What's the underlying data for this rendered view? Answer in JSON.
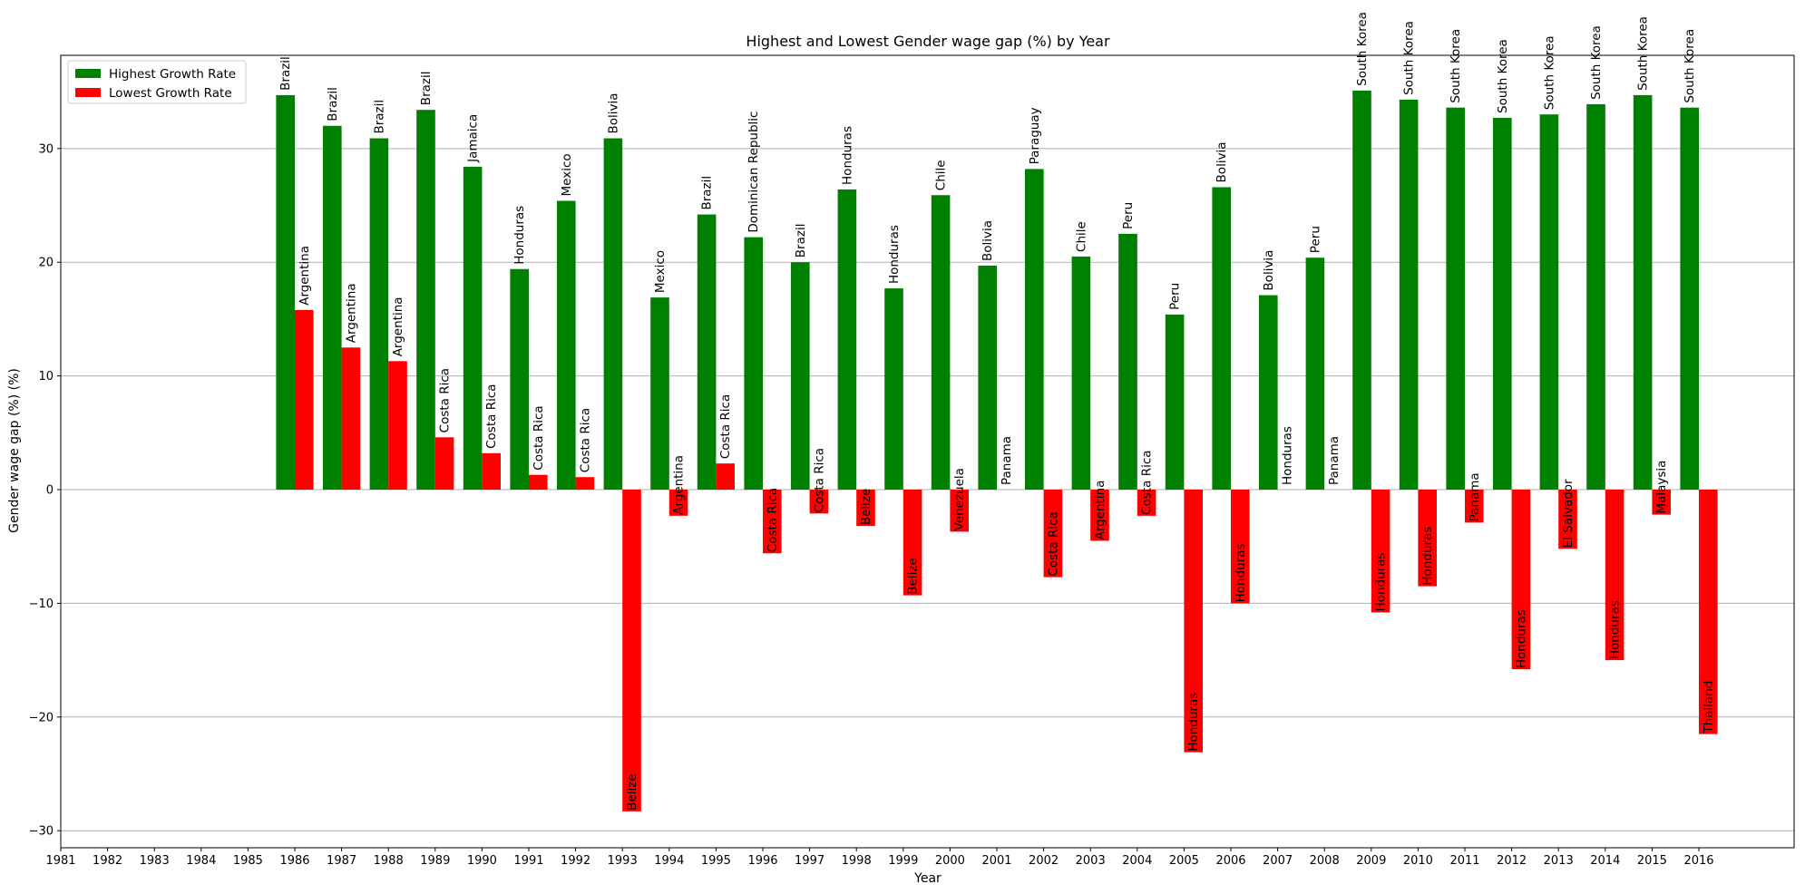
{
  "chart_data": {
    "type": "bar",
    "title": "Highest and Lowest Gender wage gap (%) by Year",
    "xlabel": "Year",
    "ylabel": "Gender wage gap (%) (%)",
    "ylim": [
      -31.5,
      38.2
    ],
    "yticks": [
      -30,
      -20,
      -10,
      0,
      10,
      20,
      30
    ],
    "grid": "y",
    "legend_position": "top-left",
    "categories": [
      "1981",
      "1982",
      "1983",
      "1984",
      "1985",
      "1986",
      "1987",
      "1988",
      "1989",
      "1990",
      "1991",
      "1992",
      "1993",
      "1994",
      "1995",
      "1996",
      "1997",
      "1998",
      "1999",
      "2000",
      "2001",
      "2002",
      "2003",
      "2004",
      "2005",
      "2006",
      "2007",
      "2008",
      "2009",
      "2010",
      "2011",
      "2012",
      "2013",
      "2014",
      "2015",
      "2016"
    ],
    "series": [
      {
        "name": "Highest Growth Rate",
        "color": "#008000",
        "values": [
          null,
          null,
          null,
          null,
          null,
          34.7,
          32.0,
          30.9,
          33.4,
          28.4,
          19.4,
          25.4,
          30.9,
          16.9,
          24.2,
          22.2,
          20.0,
          26.4,
          17.7,
          25.9,
          19.7,
          28.2,
          20.5,
          22.5,
          15.4,
          26.6,
          17.1,
          20.4,
          35.1,
          34.3,
          33.6,
          32.7,
          33.0,
          33.9,
          34.7,
          33.6
        ],
        "labels": [
          null,
          null,
          null,
          null,
          null,
          "Brazil",
          "Brazil",
          "Brazil",
          "Brazil",
          "Jamaica",
          "Honduras",
          "Mexico",
          "Bolivia",
          "Mexico",
          "Brazil",
          "Dominican Republic",
          "Brazil",
          "Honduras",
          "Honduras",
          "Chile",
          "Bolivia",
          "Paraguay",
          "Chile",
          "Peru",
          "Peru",
          "Bolivia",
          "Bolivia",
          "Peru",
          "South Korea",
          "South Korea",
          "South Korea",
          "South Korea",
          "South Korea",
          "South Korea",
          "South Korea",
          "South Korea"
        ]
      },
      {
        "name": "Lowest Growth Rate",
        "color": "#ff0000",
        "values": [
          null,
          null,
          null,
          null,
          null,
          15.8,
          12.5,
          11.3,
          4.6,
          3.2,
          1.3,
          1.1,
          -28.3,
          -2.3,
          2.3,
          -5.6,
          -2.1,
          -3.2,
          -9.3,
          -3.7,
          0.0,
          -7.7,
          -4.5,
          -2.3,
          -23.1,
          -10.0,
          0.0,
          0.0,
          -10.8,
          -8.5,
          -2.9,
          -15.8,
          -5.2,
          -15.0,
          -2.2,
          -21.5
        ],
        "labels": [
          null,
          null,
          null,
          null,
          null,
          "Argentina",
          "Argentina",
          "Argentina",
          "Costa Rica",
          "Costa Rica",
          "Costa Rica",
          "Costa Rica",
          "Belize",
          "Argentina",
          "Costa Rica",
          "Costa Rica",
          "Costa Rica",
          "Belize",
          "Belize",
          "Venezuela",
          "Panama",
          "Costa Rica",
          "Argentina",
          "Costa Rica",
          "Honduras",
          "Honduras",
          "Honduras",
          "Panama",
          "Honduras",
          "Honduras",
          "Panama",
          "Honduras",
          "El Salvador",
          "Honduras",
          "Malaysia",
          "Thailand"
        ]
      }
    ]
  }
}
